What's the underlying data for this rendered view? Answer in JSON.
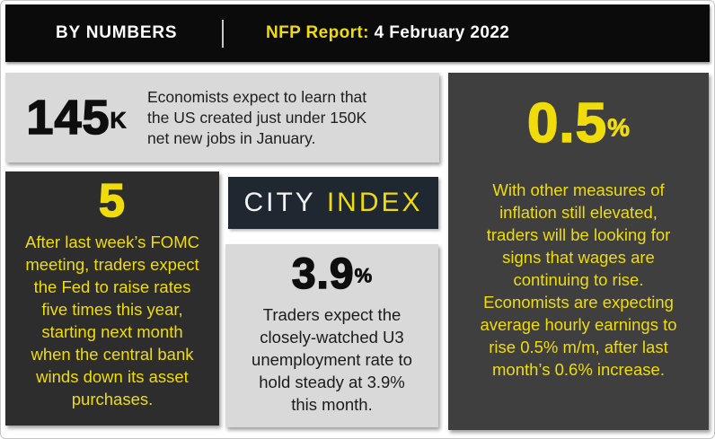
{
  "header": {
    "brand_label": "BY NUMBERS",
    "report_label": "NFP Report:",
    "report_date": " 4 February 2022"
  },
  "logo": {
    "part1": "CITY",
    "part2": "INDEX"
  },
  "panels": {
    "jobs": {
      "value": "145",
      "suffix": "K",
      "text": "Economists expect to learn that\nthe US created just under 150K\nnet new jobs in January."
    },
    "rates": {
      "value": "5",
      "text": "After last week’s FOMC\nmeeting, traders expect\nthe Fed to raise rates\nfive times this year,\nstarting next month\nwhen the central bank\nwinds down its asset\npurchases."
    },
    "unemployment": {
      "value": "3.9",
      "suffix": "%",
      "text": "Traders expect the\nclosely-watched U3\nunemployment rate to\nhold steady at 3.9%\nthis month."
    },
    "wages": {
      "value": "0.5",
      "suffix": "%",
      "text": "With other measures of\ninflation still elevated,\ntraders will be looking for\nsigns that wages are\ncontinuing to rise.\nEconomists are expecting\naverage hourly earnings to\nrise 0.5% m/m, after last\nmonth’s 0.6% increase."
    }
  },
  "colors": {
    "yellow": "#F0DC0A",
    "header_bg": "#0B0B0B",
    "light_panel": "#D9D9D9",
    "dark_panel": "#2D2D2D",
    "mid_panel": "#3F3F3F",
    "logo_bg": "#1F2731"
  }
}
